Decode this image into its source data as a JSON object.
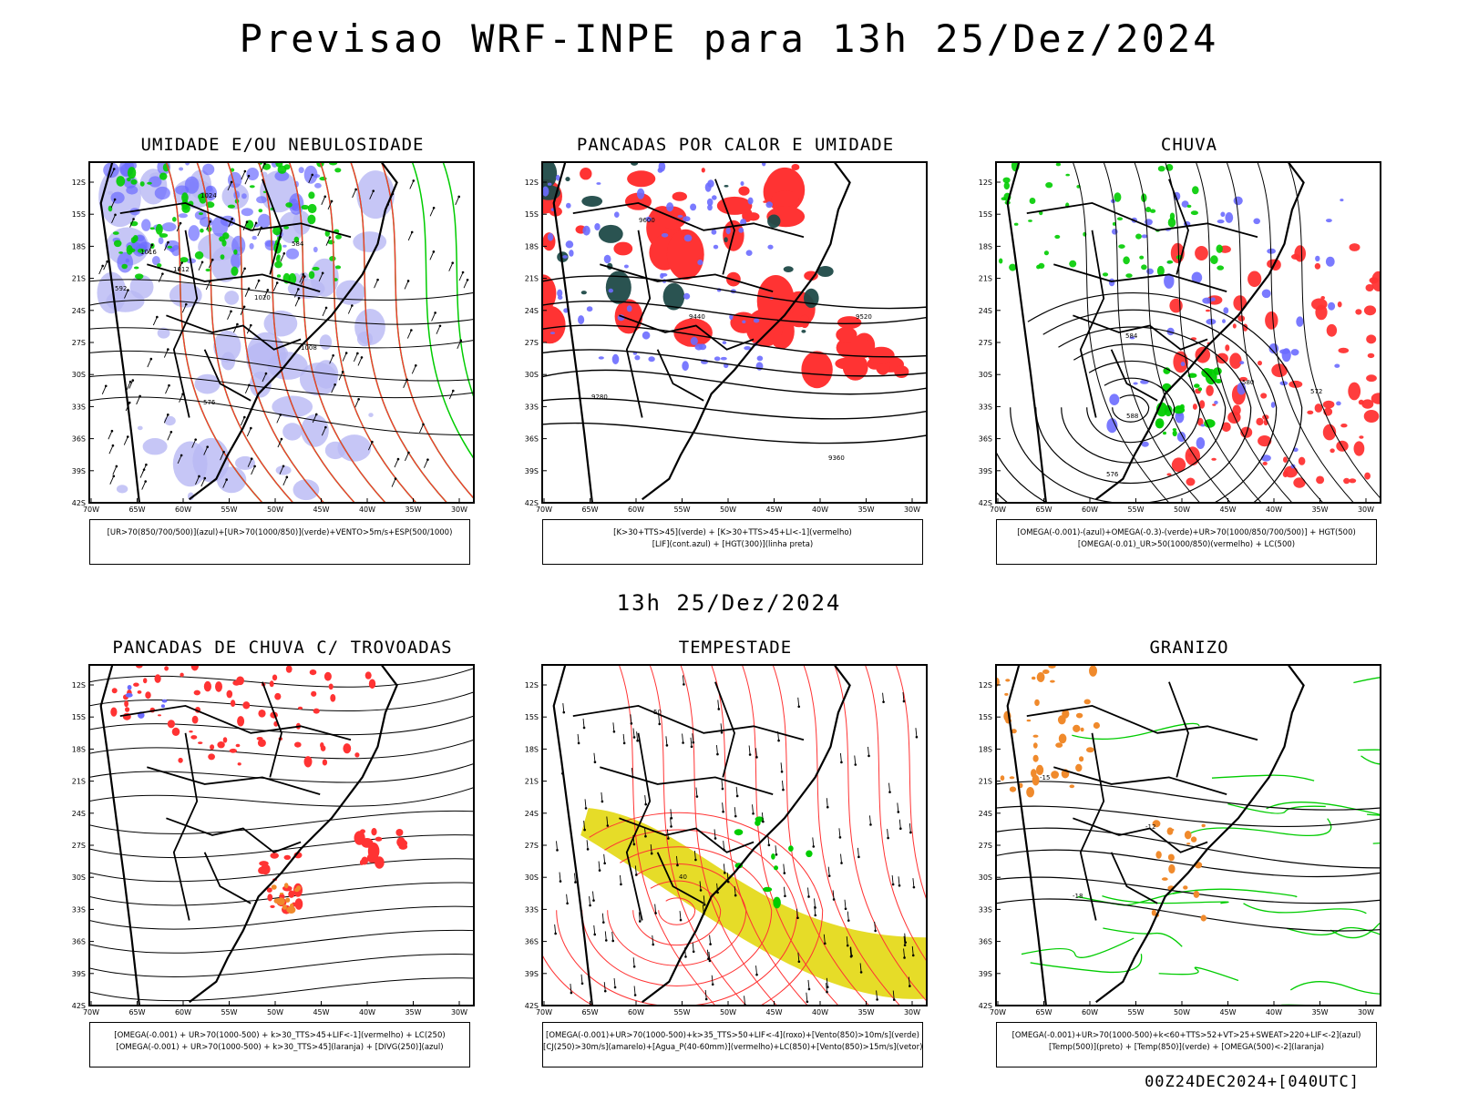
{
  "title": "Previsao WRF-INPE  para 13h 25/Dez/2024",
  "mid_date": "13h 25/Dez/2024",
  "footer": "00Z24DEC2024+[040UTC]",
  "lat_labels": [
    "12S",
    "15S",
    "18S",
    "21S",
    "24S",
    "27S",
    "30S",
    "33S",
    "36S",
    "39S",
    "42S"
  ],
  "lon_labels": [
    "70W",
    "65W",
    "60W",
    "55W",
    "50W",
    "45W",
    "40W",
    "35W",
    "30W"
  ],
  "colors": {
    "blue": "#6b6bff",
    "green": "#00cc00",
    "red": "#ff3333",
    "darkgreen": "#1f4a48",
    "yellow": "#e6dc28",
    "orange": "#f08a2c",
    "lavender": "#b8b8f4"
  },
  "panels": [
    {
      "id": "umidade",
      "title": "UMIDADE E/OU NEBULOSIDADE",
      "legend": [
        "[UR>70(850/700/500)](azul)+[UR>70(1000/850)](verde)+VENTO>5m/s+ESP(500/1000)"
      ],
      "contour_labels": [
        "1012",
        "1016",
        "1020",
        "1024",
        "576",
        "584",
        "592",
        "1008"
      ]
    },
    {
      "id": "pancadas",
      "title": "PANCADAS POR CALOR E UMIDADE",
      "legend": [
        "[K>30+TTS>45](verde) + [K>30+TTS>45+LI<-1](vermelho)",
        "[LIF](cont.azul) + [HGT(300)](linha preta)"
      ],
      "contour_labels": [
        "9600",
        "9520",
        "9440",
        "9360",
        "9280"
      ]
    },
    {
      "id": "chuva",
      "title": "CHUVA",
      "legend": [
        "[OMEGA(-0.001)-(azul)+OMEGA(-0.3)-(verde)+UR>70(1000/850/700/500)] + HGT(500)",
        "[OMEGA(-0.01)_UR>50(1000/850)(vermelho) + LC(500)"
      ],
      "contour_labels": [
        "576",
        "580",
        "584",
        "588",
        "572"
      ]
    },
    {
      "id": "trovoadas",
      "title": "PANCADAS DE CHUVA C/ TROVOADAS",
      "legend": [
        "[OMEGA(-0.001) + UR>70(1000-500) + k>30_TTS>45+LIF<-1](vermelho) + LC(250)",
        "[OMEGA(-0.001) + UR>70(1000-500) + k>30_TTS>45](laranja) + [DIVG(250)](azul)"
      ],
      "contour_labels": []
    },
    {
      "id": "tempestade",
      "title": "TEMPESTADE",
      "legend": [
        "[OMEGA(-0.001)+UR>70(1000-500)+k>35_TTS>50+LIF<-4](roxo)+[Vento(850)>10m/s](verde)",
        "[CJ(250)>30m/s](amarelo)+[Agua_P(40-60mm)](vermelho)+LC(850)+[Vento(850)>15m/s](vetor)"
      ],
      "contour_labels": [
        "40",
        "50"
      ]
    },
    {
      "id": "granizo",
      "title": "GRANIZO",
      "legend": [
        "[OMEGA(-0.001)+UR>70(1000-500)+k<60+TTS>52+VT>25+SWEAT>220+LIF<-2](azul)",
        "[Temp(500)](preto) + [Temp(850)](verde) + [OMEGA(500)<-2](laranja)"
      ],
      "contour_labels": [
        "-12",
        "-15",
        "-18"
      ]
    }
  ]
}
